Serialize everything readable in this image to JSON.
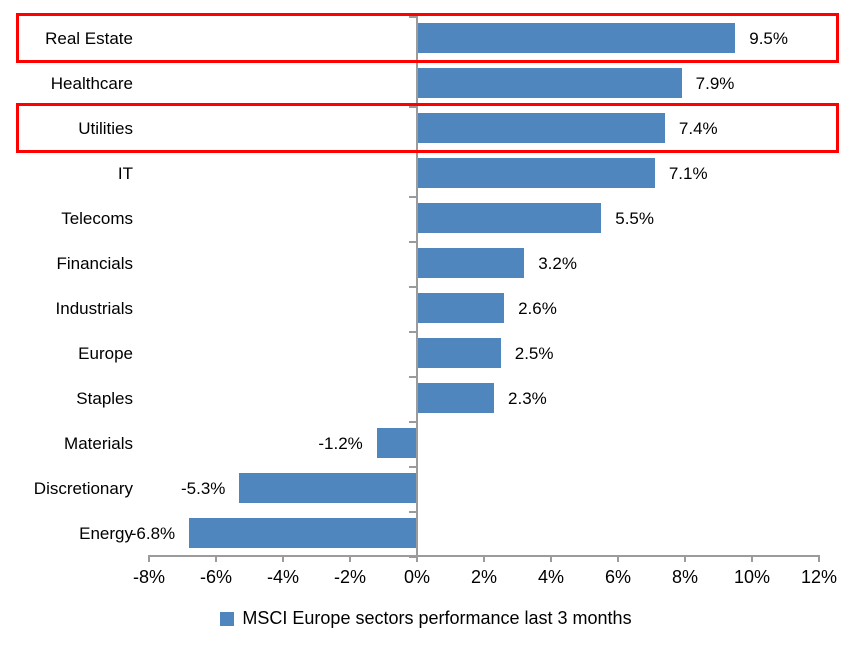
{
  "chart_data": {
    "type": "bar",
    "orientation": "horizontal",
    "title": "",
    "categories": [
      "Real Estate",
      "Healthcare",
      "Utilities",
      "IT",
      "Telecoms",
      "Financials",
      "Industrials",
      "Europe",
      "Staples",
      "Materials",
      "Discretionary",
      "Energy"
    ],
    "values": [
      9.5,
      7.9,
      7.4,
      7.1,
      5.5,
      3.2,
      2.6,
      2.5,
      2.3,
      -1.2,
      -5.3,
      -6.8
    ],
    "value_labels": [
      "9.5%",
      "7.9%",
      "7.4%",
      "7.1%",
      "5.5%",
      "3.2%",
      "2.6%",
      "2.5%",
      "2.3%",
      "-1.2%",
      "-5.3%",
      "-6.8%"
    ],
    "highlighted_categories": [
      "Real Estate",
      "Utilities"
    ],
    "x_axis": {
      "min": -8,
      "max": 12,
      "tick_step": 2,
      "tick_labels": [
        "-8%",
        "-6%",
        "-4%",
        "-2%",
        "0%",
        "2%",
        "4%",
        "6%",
        "8%",
        "10%",
        "12%"
      ]
    },
    "legend": {
      "label": "MSCI Europe sectors performance last 3 months",
      "position": "bottom",
      "marker": "square"
    },
    "grid": "off",
    "colors": {
      "bar": "#4f86bd",
      "highlight_box": "#ff0000",
      "axis": "#9b9b9b",
      "text": "#000000"
    }
  }
}
